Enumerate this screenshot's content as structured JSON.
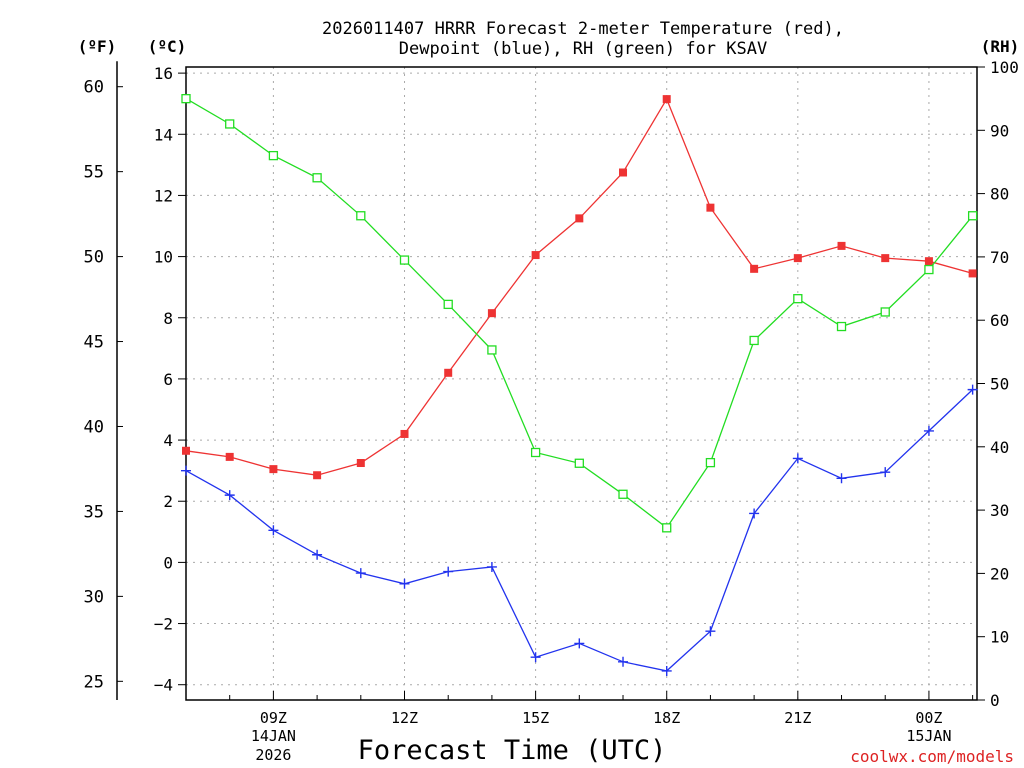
{
  "chart_data": {
    "type": "line",
    "title_lines": [
      "2026011407 HRRR Forecast 2-meter Temperature (red),",
      "Dewpoint (blue), RH (green) for KSAV"
    ],
    "xlabel": "Forecast Time (UTC)",
    "unit_labels": {
      "fahrenheit": "(ºF)",
      "celsius": "(ºC)",
      "rh": "(RH)"
    },
    "credit": "coolwx.com/models",
    "x_hours": [
      7,
      8,
      9,
      10,
      11,
      12,
      13,
      14,
      15,
      16,
      17,
      18,
      19,
      20,
      21,
      22,
      23,
      24,
      25
    ],
    "xlim": [
      7,
      25.1
    ],
    "x_ticks": [
      {
        "x": 9,
        "label": "09Z",
        "sub1": "14JAN",
        "sub2": "2026"
      },
      {
        "x": 12,
        "label": "12Z"
      },
      {
        "x": 15,
        "label": "15Z"
      },
      {
        "x": 18,
        "label": "18Z"
      },
      {
        "x": 21,
        "label": "21Z"
      },
      {
        "x": 24,
        "label": "00Z",
        "sub1": "15JAN"
      }
    ],
    "celsius_axis": {
      "range": [
        -4.5,
        16.2
      ],
      "ticks": [
        "16",
        "14",
        "12",
        "10",
        "8",
        "6",
        "4",
        "2",
        "0",
        "−2",
        "−4"
      ],
      "tick_values": [
        16,
        14,
        12,
        10,
        8,
        6,
        4,
        2,
        0,
        -2,
        -4
      ]
    },
    "fahrenheit_axis": {
      "ticks": [
        "60",
        "55",
        "50",
        "45",
        "40",
        "35",
        "30",
        "25"
      ],
      "tick_values": [
        60,
        55,
        50,
        45,
        40,
        35,
        30,
        25
      ]
    },
    "rh_axis": {
      "range": [
        0,
        100
      ],
      "ticks": [
        "100",
        "90",
        "80",
        "70",
        "60",
        "50",
        "40",
        "30",
        "20",
        "10",
        "0"
      ],
      "tick_values": [
        100,
        90,
        80,
        70,
        60,
        50,
        40,
        30,
        20,
        10,
        0
      ]
    },
    "series": [
      {
        "name": "Temperature",
        "units": "C",
        "color": "#ee3333",
        "marker": "filled-square",
        "values": [
          3.65,
          3.45,
          3.05,
          2.85,
          3.25,
          4.2,
          6.2,
          8.15,
          10.05,
          11.25,
          12.75,
          15.15,
          11.6,
          9.6,
          9.95,
          10.35,
          9.95,
          9.85,
          9.45
        ]
      },
      {
        "name": "Dewpoint",
        "units": "C",
        "color": "#2233ee",
        "marker": "plus",
        "values": [
          3.0,
          2.2,
          1.05,
          0.25,
          -0.35,
          -0.7,
          -0.3,
          -0.15,
          -3.1,
          -2.65,
          -3.25,
          -3.55,
          -2.25,
          1.6,
          3.4,
          2.75,
          2.95,
          4.3,
          5.65
        ]
      },
      {
        "name": "RH",
        "units": "%",
        "color": "#22dd22",
        "marker": "open-square",
        "values": [
          95,
          91,
          86,
          82.5,
          76.5,
          69.5,
          62.5,
          55.3,
          39.1,
          37.4,
          32.5,
          27.2,
          37.5,
          56.8,
          63.4,
          59,
          61.3,
          68,
          76.5
        ]
      }
    ]
  }
}
